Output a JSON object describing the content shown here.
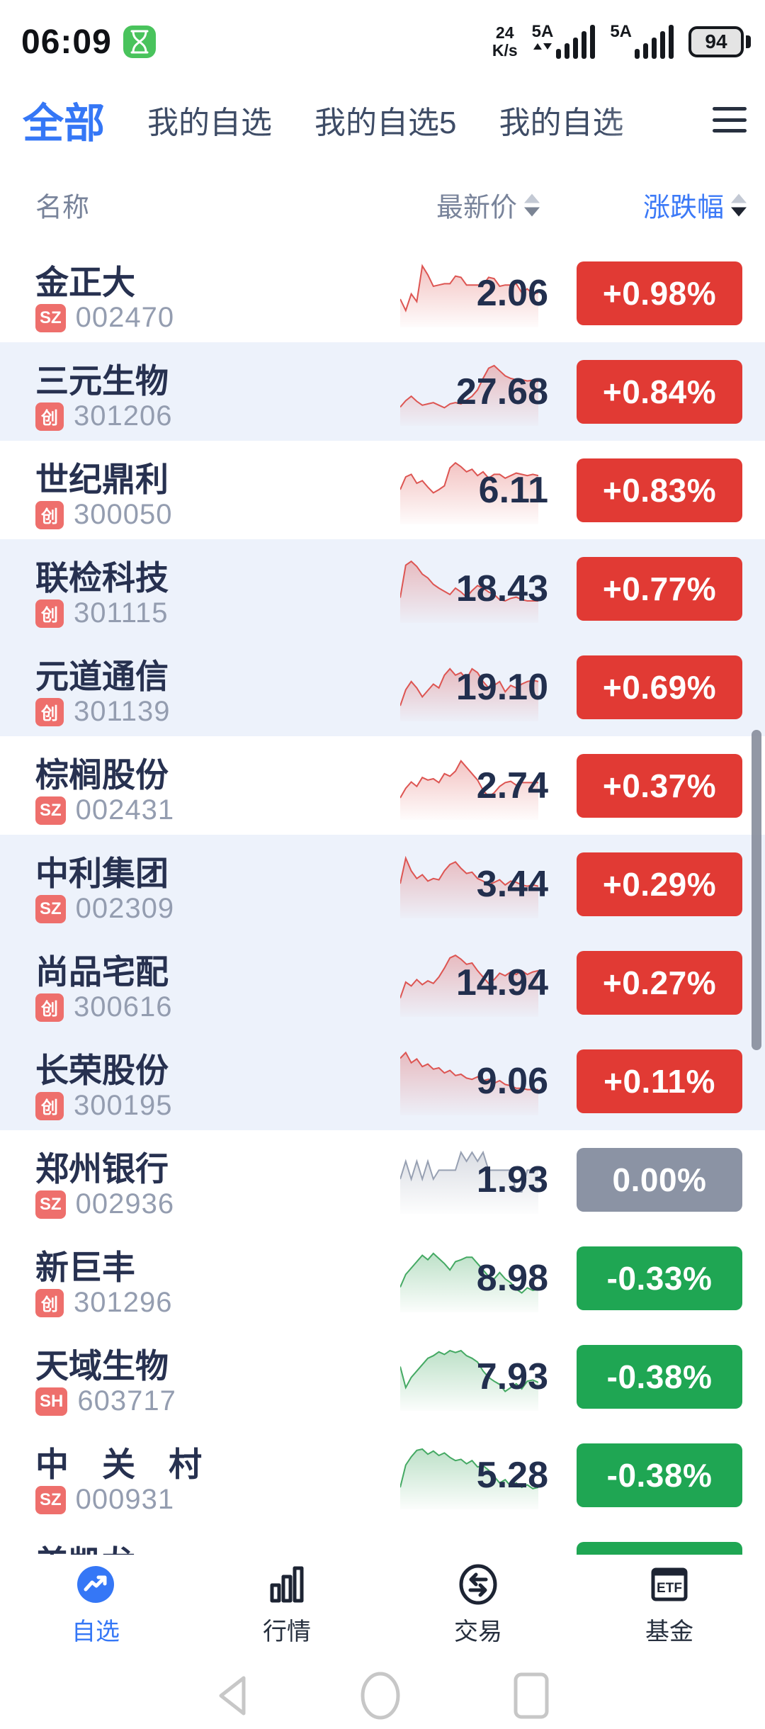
{
  "status_bar": {
    "time": "06:09",
    "net_speed_value": "24",
    "net_speed_unit": "K/s",
    "sim1_label": "5A",
    "sim2_label": "5A",
    "battery_percent": "94"
  },
  "tabs": {
    "items": [
      {
        "label": "全部",
        "active": true
      },
      {
        "label": "我的自选",
        "active": false
      },
      {
        "label": "我的自选5",
        "active": false
      },
      {
        "label": "我的自选",
        "active": false
      }
    ]
  },
  "table_header": {
    "name": "名称",
    "price": "最新价",
    "change": "涨跌幅"
  },
  "colors": {
    "accent_blue": "#3577f6",
    "rise_red": "#e13a34",
    "fall_green": "#1fa653",
    "flat_gray": "#8b93a4",
    "market_badge_red": "#ee6f6c",
    "row_highlight": "#edf2fb"
  },
  "rows": [
    {
      "name": "金正大",
      "market": "SZ",
      "code": "002470",
      "price": "2.06",
      "change": "+0.98%",
      "dir": "up",
      "highlighted": false,
      "spark": [
        60,
        78,
        52,
        64,
        8,
        22,
        40,
        38,
        36,
        36,
        24,
        26,
        38,
        38,
        38,
        38,
        26,
        28,
        40,
        38,
        38,
        36,
        50,
        44,
        52,
        50
      ]
    },
    {
      "name": "三元生物",
      "market": "创",
      "code": "301206",
      "price": "27.68",
      "change": "+0.84%",
      "dir": "up",
      "highlighted": true,
      "spark": [
        75,
        65,
        58,
        66,
        72,
        70,
        68,
        72,
        76,
        70,
        68,
        70,
        64,
        58,
        48,
        30,
        14,
        10,
        18,
        26,
        30,
        32,
        32,
        34,
        33,
        35
      ]
    },
    {
      "name": "世纪鼎利",
      "market": "创",
      "code": "300050",
      "price": "6.11",
      "change": "+0.83%",
      "dir": "up",
      "highlighted": false,
      "spark": [
        50,
        30,
        26,
        40,
        36,
        46,
        55,
        50,
        44,
        16,
        8,
        14,
        22,
        18,
        28,
        22,
        32,
        26,
        26,
        32,
        28,
        24,
        26,
        28,
        26,
        28
      ]
    },
    {
      "name": "联检科技",
      "market": "创",
      "code": "301115",
      "price": "18.43",
      "change": "+0.77%",
      "dir": "up",
      "highlighted": true,
      "spark": [
        65,
        14,
        8,
        16,
        28,
        34,
        44,
        50,
        55,
        60,
        50,
        56,
        64,
        54,
        46,
        50,
        56,
        60,
        68,
        70,
        66,
        64,
        68,
        70,
        70,
        70
      ]
    },
    {
      "name": "元道通信",
      "market": "创",
      "code": "301139",
      "price": "19.10",
      "change": "+0.69%",
      "dir": "up",
      "highlighted": true,
      "spark": [
        80,
        55,
        42,
        52,
        66,
        56,
        46,
        52,
        32,
        22,
        32,
        28,
        38,
        22,
        28,
        42,
        52,
        48,
        42,
        58,
        48,
        52,
        46,
        42,
        40,
        42
      ]
    },
    {
      "name": "棕榈股份",
      "market": "SZ",
      "code": "002431",
      "price": "2.74",
      "change": "+0.37%",
      "dir": "up",
      "highlighted": false,
      "spark": [
        70,
        55,
        45,
        52,
        38,
        42,
        40,
        46,
        32,
        36,
        28,
        12,
        22,
        32,
        42,
        58,
        68,
        62,
        52,
        46,
        44,
        50,
        46,
        46,
        46,
        46
      ]
    },
    {
      "name": "中利集团",
      "market": "SZ",
      "code": "002309",
      "price": "3.44",
      "change": "+0.29%",
      "dir": "up",
      "highlighted": true,
      "spark": [
        50,
        10,
        30,
        42,
        36,
        46,
        42,
        44,
        30,
        20,
        16,
        26,
        34,
        32,
        42,
        46,
        52,
        48,
        44,
        52,
        46,
        48,
        52,
        54,
        52,
        54
      ]
    },
    {
      "name": "尚品宅配",
      "market": "创",
      "code": "300616",
      "price": "14.94",
      "change": "+0.27%",
      "dir": "up",
      "highlighted": true,
      "spark": [
        75,
        50,
        56,
        46,
        54,
        48,
        52,
        42,
        28,
        12,
        8,
        14,
        22,
        20,
        32,
        42,
        52,
        46,
        36,
        40,
        34,
        38,
        32,
        38,
        34,
        32
      ]
    },
    {
      "name": "长荣股份",
      "market": "创",
      "code": "300195",
      "price": "9.06",
      "change": "+0.11%",
      "dir": "up",
      "highlighted": true,
      "spark": [
        15,
        6,
        22,
        16,
        28,
        24,
        32,
        30,
        38,
        34,
        42,
        40,
        46,
        48,
        44,
        50,
        48,
        54,
        50,
        56,
        58,
        62,
        62,
        64,
        64,
        64
      ]
    },
    {
      "name": "郑州银行",
      "market": "SZ",
      "code": "002936",
      "price": "1.93",
      "change": "0.00%",
      "dir": "flat",
      "highlighted": false,
      "spark": [
        50,
        22,
        50,
        22,
        50,
        22,
        50,
        36,
        36,
        36,
        36,
        8,
        22,
        8,
        22,
        8,
        36,
        36,
        36,
        36,
        36,
        70,
        70,
        36,
        36,
        36
      ]
    },
    {
      "name": "新巨丰",
      "market": "创",
      "code": "301296",
      "price": "8.98",
      "change": "-0.33%",
      "dir": "down",
      "highlighted": false,
      "spark": [
        65,
        45,
        35,
        25,
        15,
        22,
        12,
        20,
        28,
        38,
        25,
        22,
        18,
        18,
        28,
        38,
        48,
        52,
        42,
        52,
        58,
        68,
        74,
        66,
        70,
        68
      ]
    },
    {
      "name": "天域生物",
      "market": "SH",
      "code": "603717",
      "price": "7.93",
      "change": "-0.38%",
      "dir": "down",
      "highlighted": false,
      "spark": [
        35,
        68,
        52,
        42,
        32,
        22,
        18,
        12,
        16,
        10,
        13,
        10,
        18,
        22,
        28,
        42,
        52,
        58,
        63,
        74,
        68,
        62,
        70,
        58,
        56,
        60
      ]
    },
    {
      "name": "中　关　村",
      "market": "SZ",
      "code": "000931",
      "price": "5.28",
      "change": "-0.38%",
      "dir": "down",
      "highlighted": false,
      "spark": [
        70,
        35,
        22,
        12,
        10,
        18,
        13,
        20,
        16,
        23,
        28,
        26,
        33,
        28,
        38,
        36,
        43,
        53,
        63,
        58,
        68,
        63,
        70,
        66,
        72,
        70
      ]
    },
    {
      "name": "美凯龙",
      "market": "",
      "code": "",
      "price": "",
      "change": "",
      "dir": "down",
      "highlighted": false,
      "partial": true,
      "spark": []
    }
  ],
  "bottom_nav": {
    "items": [
      {
        "label": "自选",
        "active": true
      },
      {
        "label": "行情",
        "active": false
      },
      {
        "label": "交易",
        "active": false
      },
      {
        "label": "基金",
        "active": false
      }
    ]
  }
}
